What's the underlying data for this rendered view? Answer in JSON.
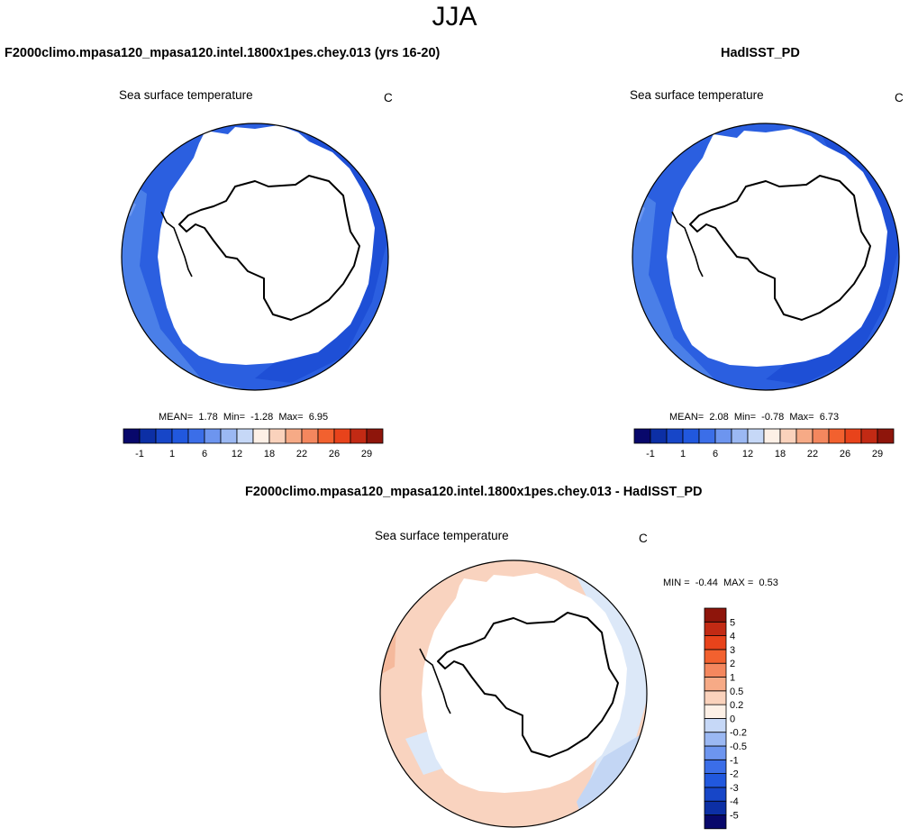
{
  "page": {
    "season": "JJA"
  },
  "panels": [
    {
      "id": "model",
      "title": "F2000climo.mpasa120_mpasa120.intel.1800x1pes.chey.013 (yrs 16-20)",
      "subtitle": "Sea surface temperature",
      "units": "C",
      "mean_label": "MEAN=",
      "mean": "1.78",
      "min_label": "Min=",
      "min": "-1.28",
      "max_label": "Max=",
      "max": "6.95"
    },
    {
      "id": "obs",
      "title": "HadISST_PD",
      "subtitle": "Sea surface temperature",
      "units": "C",
      "mean_label": "MEAN=",
      "mean": "2.08",
      "min_label": "Min=",
      "min": "-0.78",
      "max_label": "Max=",
      "max": "6.73"
    },
    {
      "id": "diff",
      "title": "F2000climo.mpasa120_mpasa120.intel.1800x1pes.chey.013 - HadISST_PD",
      "subtitle": "Sea surface temperature",
      "units": "C",
      "min_label": "MIN =",
      "min": "-0.44",
      "max_label": "MAX =",
      "max": "0.53"
    }
  ],
  "colorbar_main": {
    "colors": [
      "#08086b",
      "#0c2fa5",
      "#1746c8",
      "#2158de",
      "#3b6ee8",
      "#6d95ef",
      "#9bb8f3",
      "#c6d8f7",
      "#fdf0e6",
      "#fad2bc",
      "#f6aa86",
      "#f4875e",
      "#f2612f",
      "#e8431b",
      "#c22a14",
      "#8e150b"
    ],
    "tick_labels": [
      "-1",
      "1",
      "6",
      "12",
      "18",
      "22",
      "26",
      "29"
    ]
  },
  "colorbar_diff": {
    "colors": [
      "#08086b",
      "#0c2fa5",
      "#1746c8",
      "#2158de",
      "#3b6ee8",
      "#6d95ef",
      "#9bb8f3",
      "#c6d8f7",
      "#fdf0e6",
      "#fad2bc",
      "#f6aa86",
      "#f4875e",
      "#f2612f",
      "#e8431b",
      "#c22a14",
      "#8e150b"
    ],
    "tick_labels": [
      "5",
      "4",
      "3",
      "2",
      "1",
      "0.5",
      "0.2",
      "0",
      "-0.2",
      "-0.5",
      "-1",
      "-2",
      "-3",
      "-4",
      "-5"
    ]
  },
  "map_colors": {
    "ice": "#ffffff",
    "sst_deep": "#1e4fd6",
    "sst_mid": "#2b5fe0",
    "sst_light": "#4a7fe8",
    "sst_pale": "#6e98ee",
    "diff_warm": "#f9d3bf",
    "diff_warm_strong": "#f5b99c",
    "diff_cool": "#dce8f8",
    "diff_cool_strong": "#c3d6f4"
  }
}
